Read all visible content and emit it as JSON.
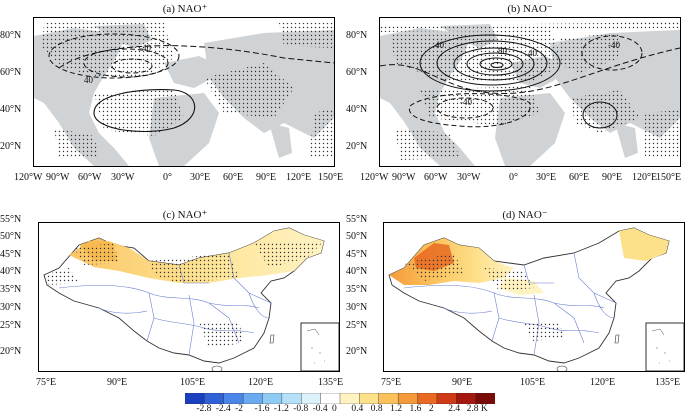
{
  "panels": {
    "a": {
      "title": "(a) NAO⁺",
      "yticks": [
        "80°N",
        "60°N",
        "40°N",
        "20°N"
      ],
      "xticks": [
        "120°W",
        "90°W",
        "60°W",
        "30°W",
        "0°",
        "30°E",
        "60°E",
        "90°E",
        "120°E",
        "150°E"
      ],
      "contour_labels": [
        "-40",
        "40"
      ]
    },
    "b": {
      "title": "(b) NAO⁻",
      "yticks": [
        "80°N",
        "60°N",
        "40°N",
        "20°N"
      ],
      "xticks": [
        "120°W",
        "90°W",
        "60°W",
        "30°W",
        "0°",
        "30°E",
        "60°E",
        "90°E",
        "120°E",
        "150°E"
      ],
      "contour_labels": [
        "40",
        "80",
        "40",
        "-40",
        "-40"
      ]
    },
    "c": {
      "title": "(c) NAO⁺",
      "yticks": [
        "55°N",
        "50°N",
        "45°N",
        "40°N",
        "35°N",
        "30°N",
        "25°N",
        "20°N"
      ],
      "xticks": [
        "75°E",
        "90°E",
        "105°E",
        "120°E",
        "135°E"
      ]
    },
    "d": {
      "title": "(d) NAO⁻",
      "yticks": [
        "55°N",
        "50°N",
        "45°N",
        "40°N",
        "35°N",
        "30°N",
        "25°N",
        "20°N"
      ],
      "xticks": [
        "75°E",
        "90°E",
        "105°E",
        "120°E",
        "135°E"
      ]
    }
  },
  "colorbar": {
    "labels": [
      "-2.8",
      "-2.4",
      "-2",
      "-1.6",
      "-1.2",
      "-0.8",
      "-0.4",
      "0",
      "0.4",
      "0.8",
      "1.2",
      "1.6",
      "2",
      "2.4",
      "2.8 K"
    ],
    "colors": [
      "#1a3fbf",
      "#2e62d6",
      "#4a86e8",
      "#6aaaf0",
      "#8ecbf5",
      "#b4e1f8",
      "#dcf2fb",
      "#ffffff",
      "#fff3c2",
      "#fde08a",
      "#fbc25c",
      "#f59a3a",
      "#e86a22",
      "#cf3b16",
      "#a3170e",
      "#7a0a08"
    ]
  }
}
